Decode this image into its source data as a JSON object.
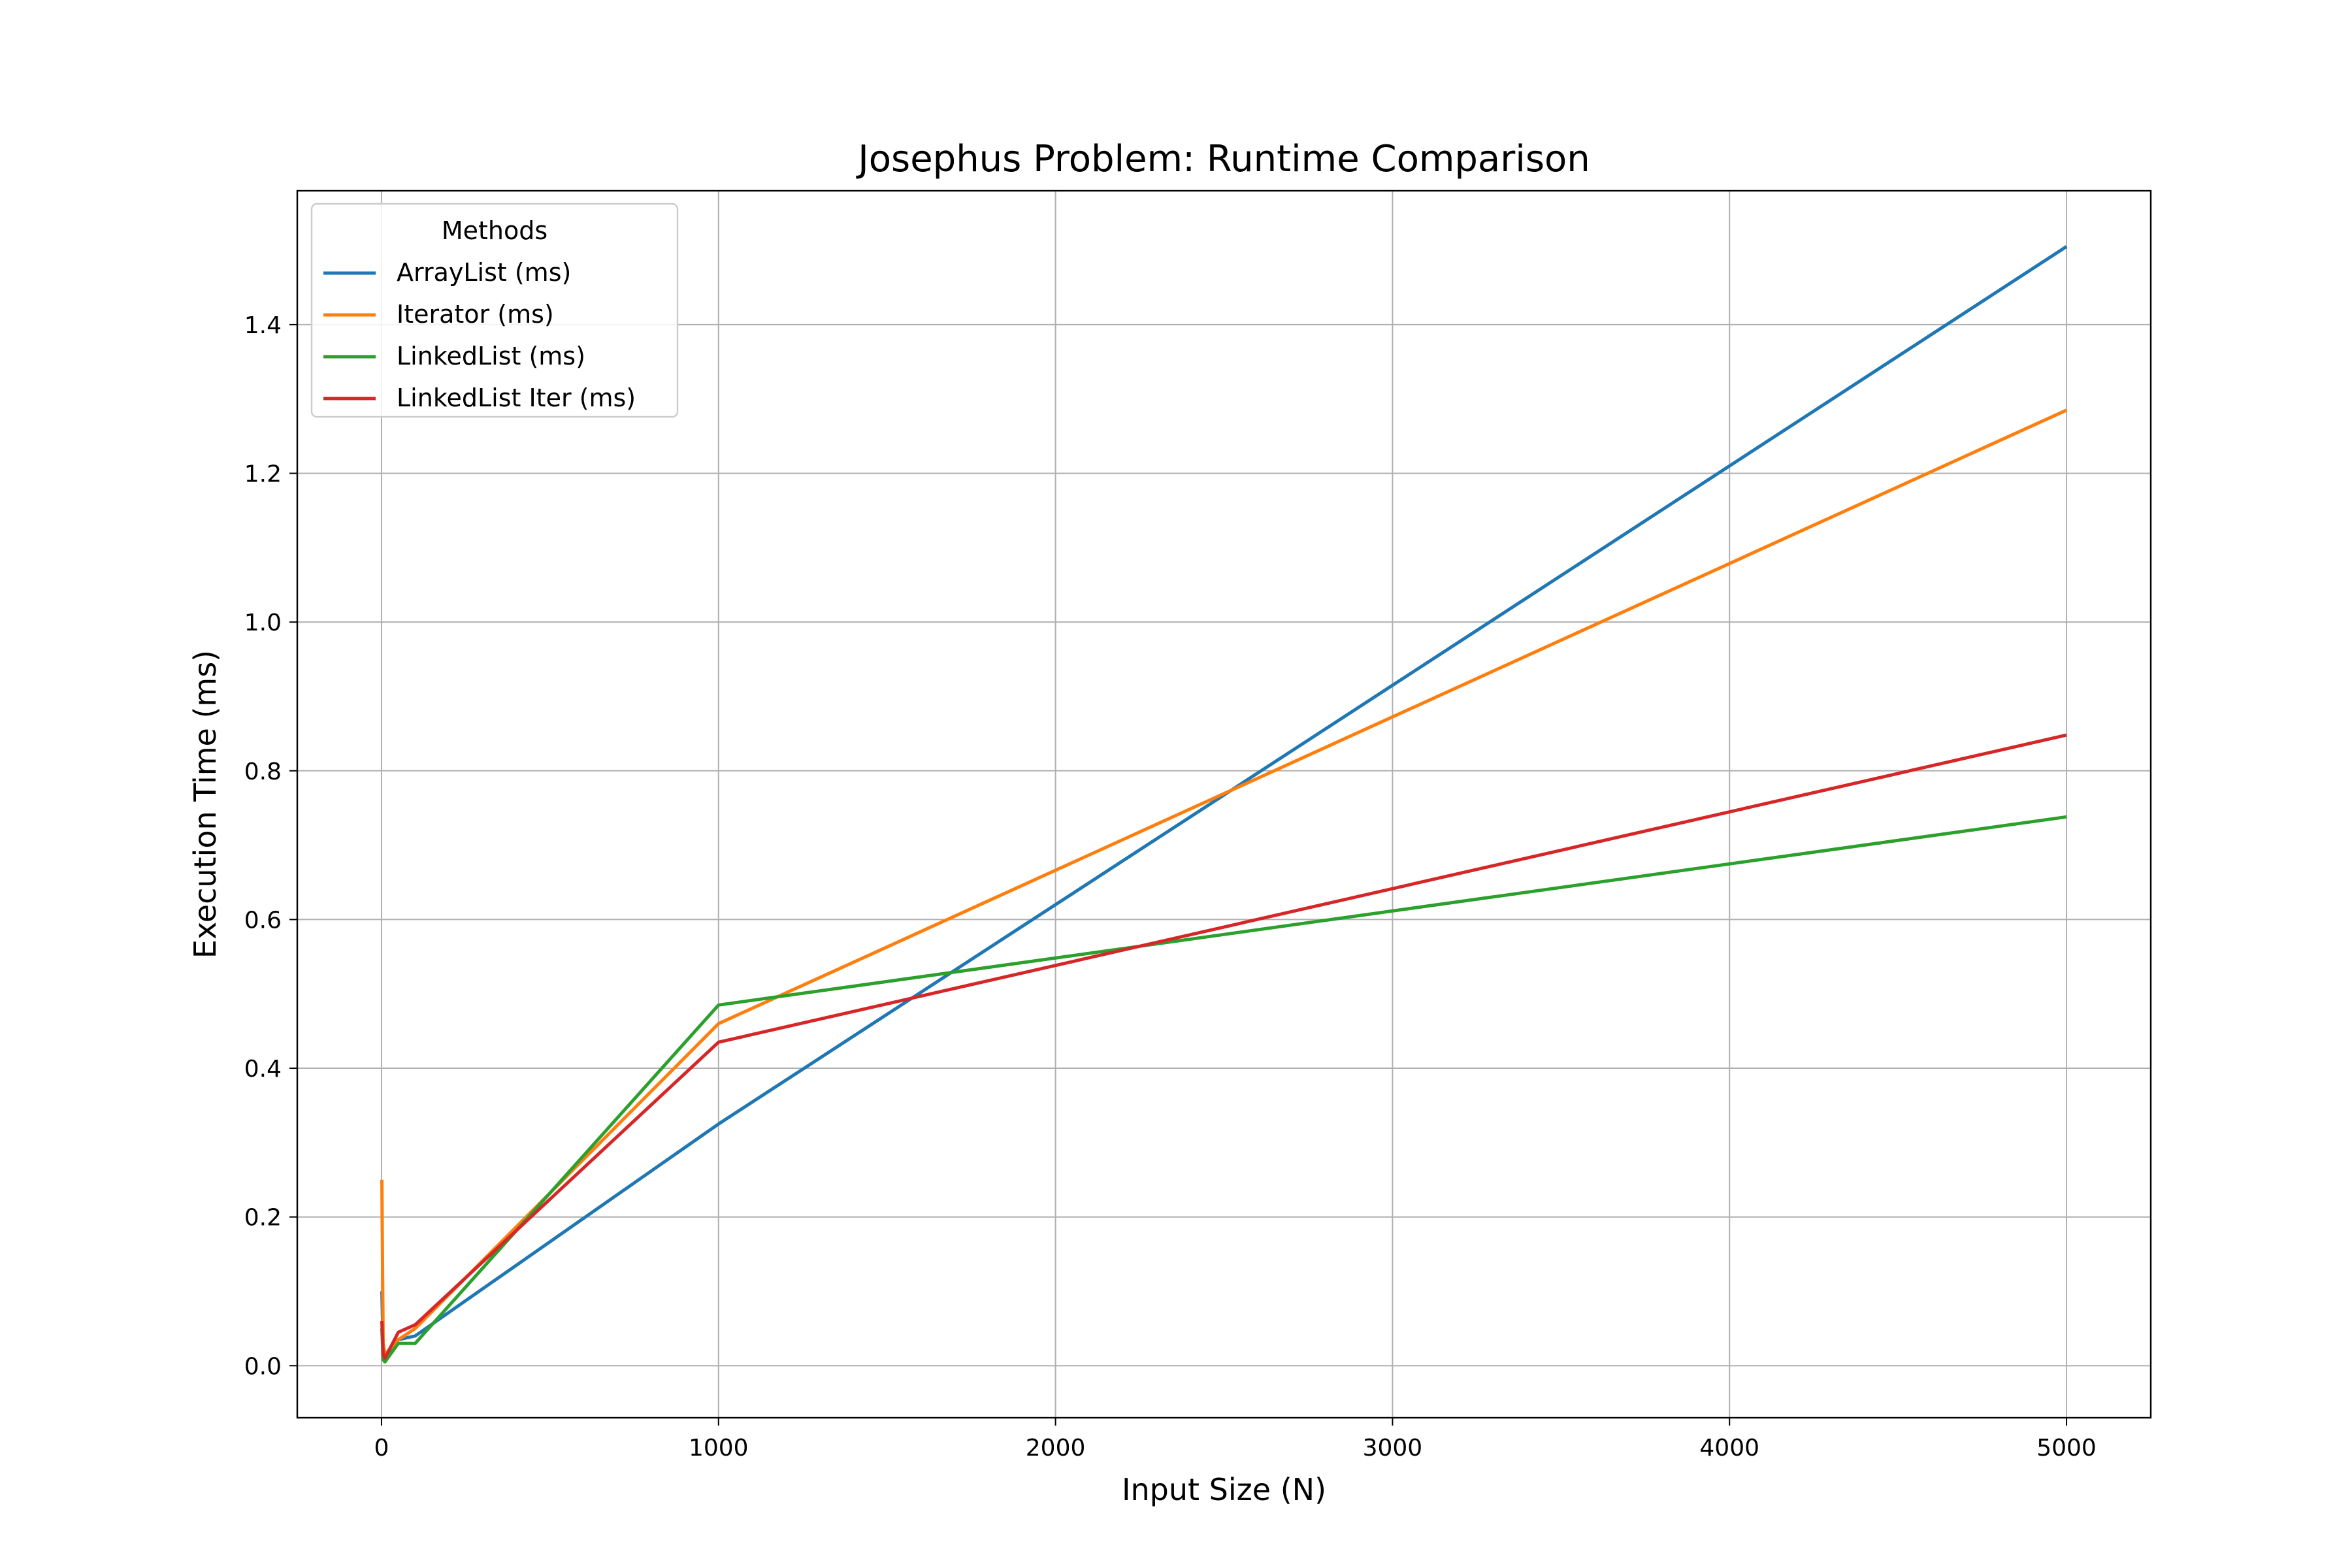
{
  "chart_data": {
    "type": "line",
    "title": "Josephus Problem: Runtime Comparison",
    "xlabel": "Input Size (N)",
    "ylabel": "Execution Time (ms)",
    "xlim": [
      -250,
      5250
    ],
    "ylim": [
      -0.07,
      1.58
    ],
    "xticks": [
      0,
      1000,
      2000,
      3000,
      4000,
      5000
    ],
    "xtick_labels": [
      "0",
      "1000",
      "2000",
      "3000",
      "4000",
      "5000"
    ],
    "yticks": [
      0.0,
      0.2,
      0.4,
      0.6,
      0.8,
      1.0,
      1.2,
      1.4
    ],
    "ytick_labels": [
      "0.0",
      "0.2",
      "0.4",
      "0.6",
      "0.8",
      "1.0",
      "1.2",
      "1.4"
    ],
    "grid": true,
    "legend": {
      "title": "Methods",
      "placement": "top-left"
    },
    "x": [
      1,
      5,
      10,
      50,
      100,
      1000,
      5000
    ],
    "series": [
      {
        "name": "ArrayList (ms)",
        "color": "#1f77b4",
        "values": [
          0.1,
          0.02,
          0.012,
          0.035,
          0.04,
          0.325,
          1.505
        ]
      },
      {
        "name": "Iterator (ms)",
        "color": "#ff7f0e",
        "values": [
          0.25,
          0.03,
          0.015,
          0.035,
          0.05,
          0.46,
          1.285
        ]
      },
      {
        "name": "LinkedList (ms)",
        "color": "#2ca02c",
        "values": [
          0.05,
          0.008,
          0.005,
          0.03,
          0.03,
          0.485,
          0.738
        ]
      },
      {
        "name": "LinkedList Iter (ms)",
        "color": "#d62728",
        "values": [
          0.06,
          0.015,
          0.01,
          0.045,
          0.055,
          0.435,
          0.848
        ]
      }
    ]
  }
}
